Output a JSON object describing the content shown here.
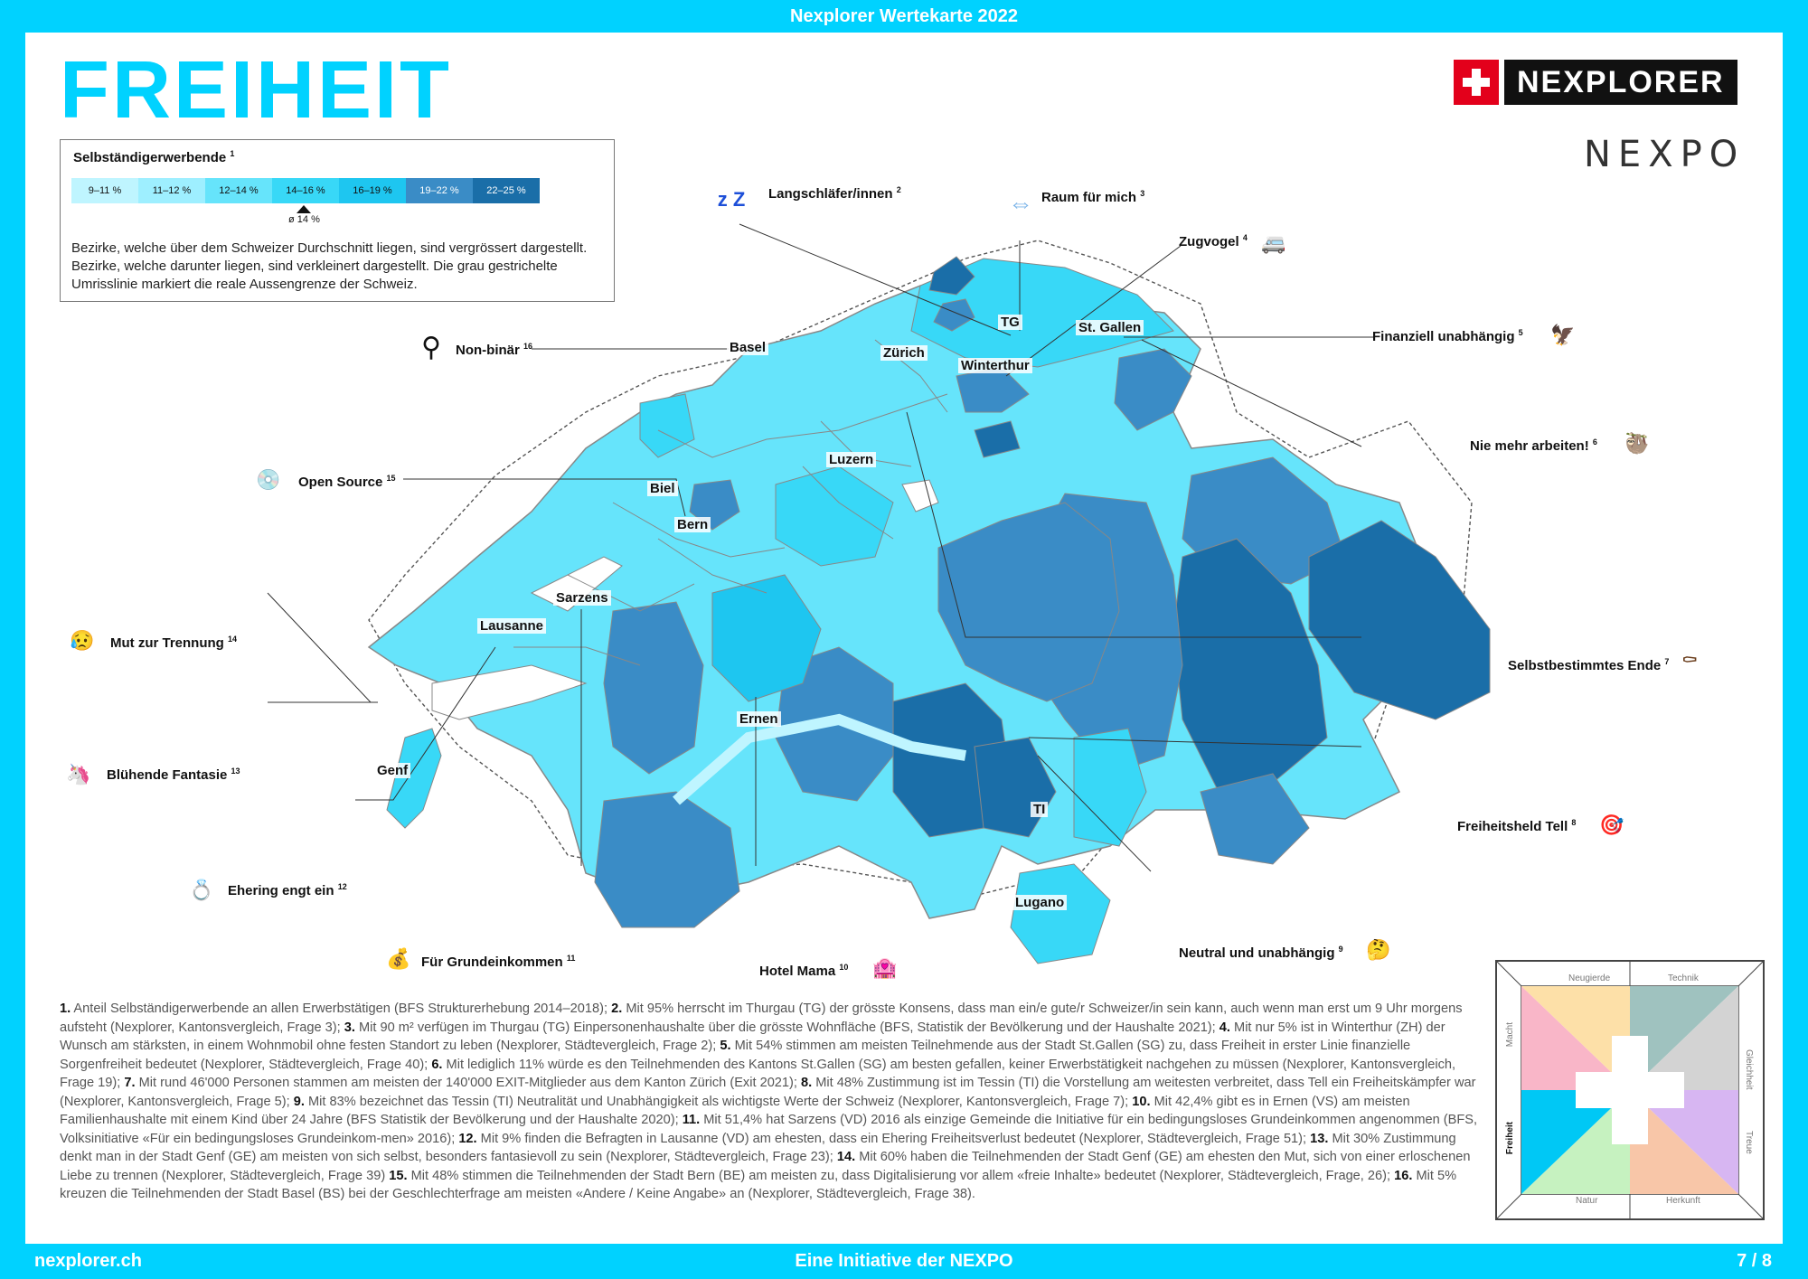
{
  "header": {
    "top_title": "Nexplorer Wertekarte 2022"
  },
  "page_title": "FREIHEIT",
  "logo": {
    "brand": "NEXPLORER",
    "secondary": "NEXPO"
  },
  "legend": {
    "title": "Selbständigerwerbende",
    "title_ref": "1",
    "scale": [
      {
        "label": "9–11 %",
        "color": "#bff5ff"
      },
      {
        "label": "11–12 %",
        "color": "#9eefff"
      },
      {
        "label": "12–14 %",
        "color": "#66e4fb"
      },
      {
        "label": "14–16 %",
        "color": "#38d8f7"
      },
      {
        "label": "16–19 %",
        "color": "#1ec6f0"
      },
      {
        "label": "19–22 %",
        "color": "#3a8cc6"
      },
      {
        "label": "22–25 %",
        "color": "#1a6ea8"
      }
    ],
    "average_label": "ø 14 %",
    "description": "Bezirke, welche über dem Schweizer Durchschnitt liegen, sind vergrössert dargestellt. Bezirke, welche darunter liegen, sind verkleinert dargestellt. Die grau gestrichelte Umrisslinie markiert die reale Aussengrenze der Schweiz."
  },
  "cities": [
    {
      "name": "Basel"
    },
    {
      "name": "Zürich"
    },
    {
      "name": "TG"
    },
    {
      "name": "St. Gallen"
    },
    {
      "name": "Winterthur"
    },
    {
      "name": "Luzern"
    },
    {
      "name": "Biel"
    },
    {
      "name": "Bern"
    },
    {
      "name": "Sarzens"
    },
    {
      "name": "Lausanne"
    },
    {
      "name": "Genf"
    },
    {
      "name": "Ernen"
    },
    {
      "name": "TI"
    },
    {
      "name": "Lugano"
    }
  ],
  "callouts": [
    {
      "label": "Langschläfer/innen",
      "ref": "2",
      "icon": "sleeping-zzz-icon",
      "glyph": "z Z"
    },
    {
      "label": "Raum für mich",
      "ref": "3",
      "icon": "left-right-arrow-icon",
      "glyph": "⇔"
    },
    {
      "label": "Zugvogel",
      "ref": "4",
      "icon": "camper-van-icon",
      "glyph": "🚐"
    },
    {
      "label": "Finanziell unabhängig",
      "ref": "5",
      "icon": "eagle-icon",
      "glyph": "🦅"
    },
    {
      "label": "Nie mehr arbeiten!",
      "ref": "6",
      "icon": "sloth-icon",
      "glyph": "🦥"
    },
    {
      "label": "Selbstbestimmtes Ende",
      "ref": "7",
      "icon": "coffin-icon",
      "glyph": "⚰"
    },
    {
      "label": "Freiheitsheld Tell",
      "ref": "8",
      "icon": "target-icon",
      "glyph": "🎯"
    },
    {
      "label": "Neutral und unabhängig",
      "ref": "9",
      "icon": "thinking-face-icon",
      "glyph": "🤔"
    },
    {
      "label": "Hotel Mama",
      "ref": "10",
      "icon": "love-hotel-icon",
      "glyph": "🏩"
    },
    {
      "label": "Für Grundeinkommen",
      "ref": "11",
      "icon": "money-bag-icon",
      "glyph": "💰"
    },
    {
      "label": "Ehering engt ein",
      "ref": "12",
      "icon": "ring-icon",
      "glyph": "💍"
    },
    {
      "label": "Blühende Fantasie",
      "ref": "13",
      "icon": "unicorn-icon",
      "glyph": "🦄"
    },
    {
      "label": "Mut zur Trennung",
      "ref": "14",
      "icon": "sad-face-icon",
      "glyph": "😥"
    },
    {
      "label": "Open Source",
      "ref": "15",
      "icon": "cd-icon",
      "glyph": "💿"
    },
    {
      "label": "Non-binär",
      "ref": "16",
      "icon": "non-binary-symbol-icon",
      "glyph": "⚲"
    }
  ],
  "footnotes": [
    {
      "n": "1.",
      "text": "Anteil Selbständigerwerbende an allen Erwerbstätigen (BFS Strukturerhebung 2014–2018);"
    },
    {
      "n": "2.",
      "text": "Mit 95% herrscht im Thurgau (TG) der grösste Konsens, dass man ein/e gute/r Schweizer/in sein kann, auch wenn man erst um 9 Uhr morgens aufsteht (Nexplorer, Kantonsvergleich, Frage 3);"
    },
    {
      "n": "3.",
      "text": "Mit 90 m² verfügen im Thurgau (TG) Einpersonenhaushalte über die grösste Wohnfläche (BFS, Statistik der Bevölkerung und der Haushalte 2021);"
    },
    {
      "n": "4.",
      "text": "Mit nur 5% ist in Winterthur (ZH) der Wunsch am stärksten, in einem Wohnmobil ohne festen Standort zu leben (Nexplorer, Städtevergleich, Frage 2);"
    },
    {
      "n": "5.",
      "text": "Mit 54% stimmen am meisten Teilnehmende aus der Stadt St.Gallen (SG) zu, dass Freiheit in erster Linie finanzielle Sorgenfreiheit bedeutet (Nexplorer, Städtevergleich, Frage 40);"
    },
    {
      "n": "6.",
      "text": "Mit lediglich 11% würde es den Teilnehmenden des Kantons St.Gallen (SG) am besten gefallen, keiner Erwerbstätigkeit nachgehen zu müssen (Nexplorer, Kantonsvergleich, Frage 19);"
    },
    {
      "n": "7.",
      "text": "Mit rund 46'000 Personen stammen am meisten der 140'000 EXIT-Mitglieder aus dem Kanton Zürich (Exit 2021);"
    },
    {
      "n": "8.",
      "text": "Mit 48% Zustimmung ist im Tessin (TI) die Vorstellung am weitesten verbreitet, dass Tell ein Freiheitskämpfer war (Nexplorer, Kantonsvergleich, Frage 5);"
    },
    {
      "n": "9.",
      "text": "Mit 83% bezeichnet das Tessin (TI) Neutralität und Unabhängigkeit als wichtigste Werte der Schweiz (Nexplorer, Kantonsvergleich, Frage 7);"
    },
    {
      "n": "10.",
      "text": "Mit 42,4% gibt es in Ernen (VS) am meisten Familienhaushalte mit einem Kind über 24 Jahre (BFS Statistik der Bevölkerung und der Haushalte 2020);"
    },
    {
      "n": "11.",
      "text": "Mit 51,4% hat Sarzens (VD) 2016 als einzige Gemeinde die Initiative für ein bedingungsloses Grundeinkommen angenommen (BFS, Volksinitiative «Für ein bedingungsloses Grundeinkom-men» 2016);"
    },
    {
      "n": "12.",
      "text": "Mit 9% finden die Befragten in Lausanne (VD) am ehesten, dass ein Ehering Freiheitsverlust bedeutet (Nexplorer, Städtevergleich, Frage 51);"
    },
    {
      "n": "13.",
      "text": "Mit 30% Zustimmung denkt man in der Stadt Genf (GE) am meisten von sich selbst, besonders fantasievoll zu sein (Nexplorer, Städtevergleich, Frage 23);"
    },
    {
      "n": "14.",
      "text": "Mit 60% haben die Teilnehmenden der Stadt Genf (GE) am ehesten den Mut, sich von einer erloschenen Liebe zu trennen (Nexplorer, Städtevergleich, Frage 39)"
    },
    {
      "n": "15.",
      "text": "Mit 48% stimmen die Teilnehmenden der Stadt Bern (BE) am meisten zu, dass Digitalisierung vor allem «freie Inhalte» bedeutet (Nexplorer, Städtevergleich, Frage, 26);"
    },
    {
      "n": "16.",
      "text": "Mit 5% kreuzen die Teilnehmenden der Stadt Basel (BS) bei der Geschlechterfrage am meisten «Andere / Keine Angabe» an (Nexplorer, Städtevergleich, Frage 38)."
    }
  ],
  "value_wheel": {
    "segments": [
      "Neugierde",
      "Technik",
      "Gleichheit",
      "Treue",
      "Herkunft",
      "Natur",
      "Freiheit",
      "Macht"
    ],
    "active": "Freiheit"
  },
  "footer": {
    "left": "nexplorer.ch",
    "center": "Eine Initiative der NEXPO",
    "right": "7 / 8"
  }
}
